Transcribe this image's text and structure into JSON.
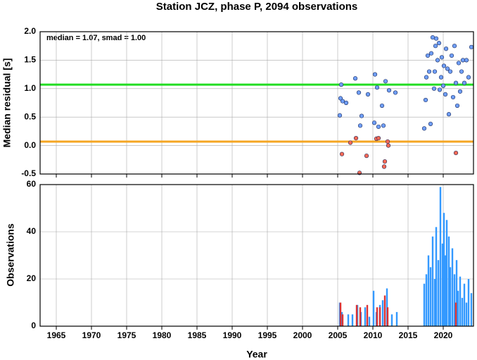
{
  "chart_data": [
    {
      "type": "scatter",
      "title": "Station JCZ, phase P, 2094 observations",
      "y_label": "Median residual [s]",
      "annotation": "median = 1.07, smad = 1.00",
      "xlim": [
        1962.7,
        2024.3
      ],
      "xticks": [
        1965,
        1970,
        1975,
        1980,
        1985,
        1990,
        1995,
        2000,
        2005,
        2010,
        2015,
        2020
      ],
      "ylim": [
        -0.5,
        2.0
      ],
      "yticks": [
        -0.5,
        {
          "value": 0,
          "label": "0.0"
        },
        0.5,
        {
          "value": 1,
          "label": "1.0"
        },
        1.5,
        {
          "value": 2,
          "label": "2.0"
        }
      ],
      "grid": true,
      "reference_lines": [
        {
          "value": 1.07,
          "color": "#22dd22"
        },
        {
          "value": 0.07,
          "color": "#f5a623"
        }
      ],
      "series": [
        {
          "color": "#6f9ef7",
          "x": [
            2005.3,
            2005.4,
            2005.5,
            2005.7,
            2006.2,
            2007.5,
            2008.0,
            2008.2,
            2008.4,
            2009.3,
            2010.3,
            2010.6,
            2010.2,
            2010.8,
            2011.3,
            2011.5,
            2011.8,
            2012.3,
            2013.2,
            2017.3,
            2017.5,
            2017.6,
            2017.8,
            2018.0,
            2018.2,
            2018.3,
            2018.5,
            2018.7,
            2018.8,
            2018.9,
            2019.0,
            2019.2,
            2019.4,
            2019.5,
            2019.7,
            2019.8,
            2020.0,
            2020.1,
            2020.3,
            2020.4,
            2020.6,
            2020.8,
            2021.0,
            2021.2,
            2021.4,
            2021.6,
            2021.8,
            2022.0,
            2022.2,
            2022.4,
            2022.6,
            2022.8,
            2023.0,
            2023.3,
            2023.6,
            2024.0
          ],
          "values": [
            0.53,
            0.83,
            1.07,
            0.78,
            0.75,
            1.18,
            0.93,
            0.35,
            0.52,
            0.9,
            1.25,
            1.02,
            0.4,
            0.33,
            0.7,
            0.35,
            1.13,
            0.97,
            0.93,
            0.3,
            0.8,
            1.2,
            1.58,
            1.3,
            0.38,
            1.62,
            1.9,
            1.0,
            1.3,
            1.75,
            1.88,
            1.5,
            1.8,
            0.98,
            1.2,
            1.55,
            1.05,
            1.4,
            0.9,
            1.7,
            1.35,
            0.55,
            1.3,
            1.58,
            0.85,
            1.75,
            1.1,
            0.7,
            1.45,
            0.95,
            1.3,
            1.5,
            1.1,
            1.5,
            1.2,
            1.73
          ]
        },
        {
          "color": "#ff6a55",
          "x": [
            2005.6,
            2006.8,
            2007.6,
            2008.1,
            2009.1,
            2010.5,
            2010.8,
            2011.6,
            2011.7,
            2012.1,
            2012.2,
            2021.8
          ],
          "values": [
            -0.15,
            0.05,
            0.13,
            -0.48,
            -0.18,
            0.12,
            0.13,
            -0.37,
            -0.28,
            0.07,
            0.0,
            -0.13
          ]
        }
      ]
    },
    {
      "type": "bar",
      "x_label": "Year",
      "y_label": "Observations",
      "xlim": [
        1962.7,
        2024.3
      ],
      "xticks": [
        1965,
        1970,
        1975,
        1980,
        1985,
        1990,
        1995,
        2000,
        2005,
        2010,
        2015,
        2020
      ],
      "ylim": [
        0,
        60
      ],
      "yticks": [
        0,
        20,
        40,
        60
      ],
      "grid": true,
      "series": [
        {
          "color": "#3399ff",
          "x": [
            2005.3,
            2005.6,
            2006.5,
            2007.1,
            2007.8,
            2008.3,
            2008.9,
            2009.5,
            2010.1,
            2010.5,
            2011.0,
            2011.4,
            2012.0,
            2012.7,
            2013.4,
            2017.3,
            2017.6,
            2017.9,
            2018.2,
            2018.5,
            2018.8,
            2019.0,
            2019.3,
            2019.6,
            2019.9,
            2020.1,
            2020.3,
            2020.5,
            2020.8,
            2021.0,
            2021.3,
            2021.6,
            2021.9,
            2022.1,
            2022.4,
            2022.7,
            2023.0,
            2023.3,
            2023.6,
            2024.0
          ],
          "values": [
            10,
            6,
            5,
            5,
            9,
            6,
            8,
            4,
            15,
            6,
            9,
            11,
            16,
            5,
            6,
            18,
            22,
            30,
            25,
            38,
            20,
            42,
            28,
            59,
            35,
            48,
            30,
            45,
            38,
            25,
            33,
            22,
            28,
            15,
            21,
            12,
            18,
            10,
            20,
            14
          ]
        },
        {
          "color": "#dd3333",
          "x": [
            2005.4,
            2005.7,
            2007.7,
            2008.2,
            2009.2,
            2010.6,
            2011.0,
            2011.7,
            2012.1,
            2021.8
          ],
          "values": [
            10,
            5,
            9,
            8,
            9,
            8,
            8,
            13,
            8,
            10
          ]
        }
      ]
    }
  ]
}
